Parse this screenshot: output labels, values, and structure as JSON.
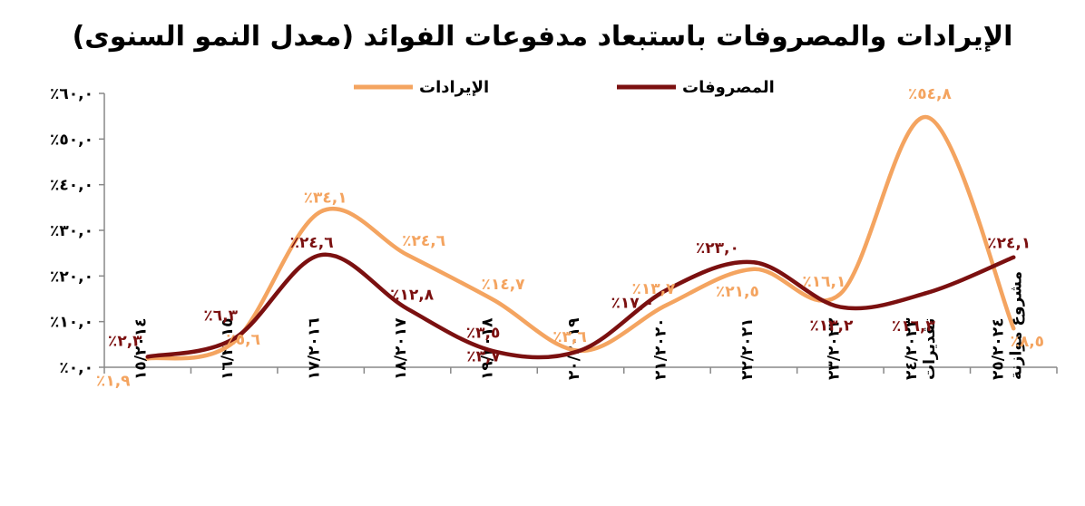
{
  "chart_data": {
    "type": "line",
    "title": "الإيرادات والمصروفات باستبعاد مدفوعات الفوائد (معدل النمو السنوى)",
    "xlabel": "",
    "ylabel": "",
    "ylim": [
      0,
      60
    ],
    "yticks": [
      "٪٠,٠",
      "٪١٠,٠",
      "٪٢٠,٠",
      "٪٣٠,٠",
      "٪٤٠,٠",
      "٪٥٠,٠",
      "٪٦٠,٠"
    ],
    "yticks_values": [
      0,
      10,
      20,
      30,
      40,
      50,
      60
    ],
    "categories": [
      [
        "١٥/٢٠١٤"
      ],
      [
        "١٦/٢٠١٥"
      ],
      [
        "١٧/٢٠١٦"
      ],
      [
        "١٨/٢٠١٧"
      ],
      [
        "١٩/٢٠١٨"
      ],
      [
        "٢٠/٢٠١٩"
      ],
      [
        "٢١/٢٠٢٠"
      ],
      [
        "٢٢/٢٠٢١"
      ],
      [
        "٢٣/٢٠٢٢"
      ],
      [
        "٢٤/٢٠٢٣",
        "تقديرات"
      ],
      [
        "٢٥/٢٠٢٤",
        "مشروع موازنة"
      ]
    ],
    "grid": false,
    "legend_position": "top",
    "series": [
      {
        "name": "الإيرادات",
        "color": "#F4A460",
        "values": [
          1.9,
          5.6,
          34.1,
          24.6,
          14.7,
          3.6,
          13.7,
          21.5,
          16.1,
          54.8,
          8.5
        ],
        "labels": [
          "٪١,٩",
          "٪٥,٦",
          "٪٣٤,١",
          "٪٢٤,٦",
          "٪١٤,٧",
          "٪٣,٦",
          "٪١٣,٧",
          "٪٢١,٥",
          "٪١٦,١",
          "٪٥٤,٨",
          "٪٨,٥"
        ]
      },
      {
        "name": "المصروفات",
        "color": "#7B1010",
        "values": [
          2.3,
          6.3,
          24.6,
          12.8,
          3.5,
          3.7,
          17.0,
          23.0,
          13.2,
          16.3,
          24.1
        ],
        "labels": [
          "٪٢,٣",
          "٪٦,٣",
          "٪٢٤,٦",
          "٪١٢,٨",
          "٪٣,٥",
          "٪٣,٧",
          "٪١٧,٠",
          "٪٢٣,٠",
          "٪١٣,٢",
          "٪١٦,٣",
          "٪٢٤,١"
        ]
      }
    ]
  }
}
